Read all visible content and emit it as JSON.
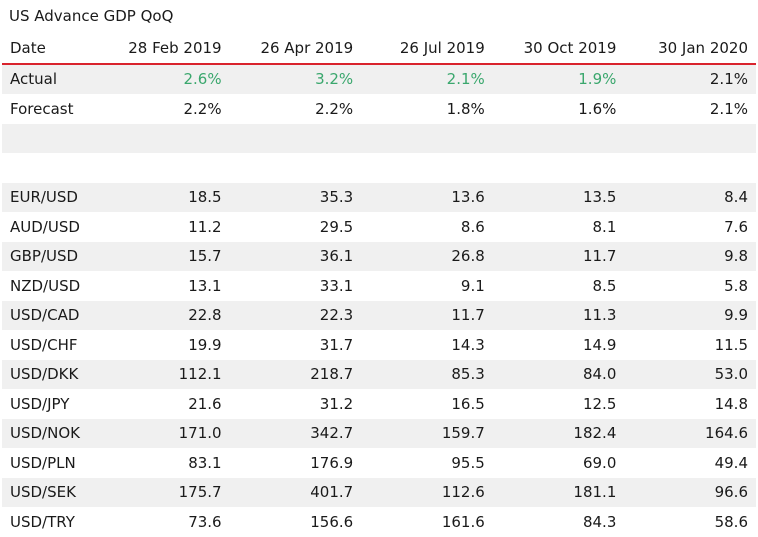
{
  "title": "US Advance GDP QoQ",
  "header": [
    "Date",
    "28 Feb 2019",
    "26 Apr 2019",
    "26 Jul 2019",
    "30 Oct 2019",
    "30 Jan 2020"
  ],
  "colors": {
    "accent_line": "#d9232d",
    "positive": "#3aa76d"
  },
  "rows": [
    {
      "label": "Actual",
      "values": [
        "2.6%",
        "3.2%",
        "2.1%",
        "1.9%",
        "2.1%"
      ],
      "green": [
        true,
        true,
        true,
        true,
        false
      ]
    },
    {
      "label": "Forecast",
      "values": [
        "2.2%",
        "2.2%",
        "1.8%",
        "1.6%",
        "2.1%"
      ],
      "green": [
        false,
        false,
        false,
        false,
        false
      ]
    },
    {
      "label": "",
      "values": [
        "",
        "",
        "",
        "",
        ""
      ],
      "green": [
        false,
        false,
        false,
        false,
        false
      ]
    },
    {
      "label": "",
      "values": [
        "",
        "",
        "",
        "",
        ""
      ],
      "green": [
        false,
        false,
        false,
        false,
        false
      ]
    },
    {
      "label": "EUR/USD",
      "values": [
        "18.5",
        "35.3",
        "13.6",
        "13.5",
        "8.4"
      ],
      "green": [
        false,
        false,
        false,
        false,
        false
      ]
    },
    {
      "label": "AUD/USD",
      "values": [
        "11.2",
        "29.5",
        "8.6",
        "8.1",
        "7.6"
      ],
      "green": [
        false,
        false,
        false,
        false,
        false
      ]
    },
    {
      "label": "GBP/USD",
      "values": [
        "15.7",
        "36.1",
        "26.8",
        "11.7",
        "9.8"
      ],
      "green": [
        false,
        false,
        false,
        false,
        false
      ]
    },
    {
      "label": "NZD/USD",
      "values": [
        "13.1",
        "33.1",
        "9.1",
        "8.5",
        "5.8"
      ],
      "green": [
        false,
        false,
        false,
        false,
        false
      ]
    },
    {
      "label": "USD/CAD",
      "values": [
        "22.8",
        "22.3",
        "11.7",
        "11.3",
        "9.9"
      ],
      "green": [
        false,
        false,
        false,
        false,
        false
      ]
    },
    {
      "label": "USD/CHF",
      "values": [
        "19.9",
        "31.7",
        "14.3",
        "14.9",
        "11.5"
      ],
      "green": [
        false,
        false,
        false,
        false,
        false
      ]
    },
    {
      "label": "USD/DKK",
      "values": [
        "112.1",
        "218.7",
        "85.3",
        "84.0",
        "53.0"
      ],
      "green": [
        false,
        false,
        false,
        false,
        false
      ]
    },
    {
      "label": "USD/JPY",
      "values": [
        "21.6",
        "31.2",
        "16.5",
        "12.5",
        "14.8"
      ],
      "green": [
        false,
        false,
        false,
        false,
        false
      ]
    },
    {
      "label": "USD/NOK",
      "values": [
        "171.0",
        "342.7",
        "159.7",
        "182.4",
        "164.6"
      ],
      "green": [
        false,
        false,
        false,
        false,
        false
      ]
    },
    {
      "label": "USD/PLN",
      "values": [
        "83.1",
        "176.9",
        "95.5",
        "69.0",
        "49.4"
      ],
      "green": [
        false,
        false,
        false,
        false,
        false
      ]
    },
    {
      "label": "USD/SEK",
      "values": [
        "175.7",
        "401.7",
        "112.6",
        "181.1",
        "96.6"
      ],
      "green": [
        false,
        false,
        false,
        false,
        false
      ]
    },
    {
      "label": "USD/TRY",
      "values": [
        "73.6",
        "156.6",
        "161.6",
        "84.3",
        "58.6"
      ],
      "green": [
        false,
        false,
        false,
        false,
        false
      ]
    }
  ]
}
